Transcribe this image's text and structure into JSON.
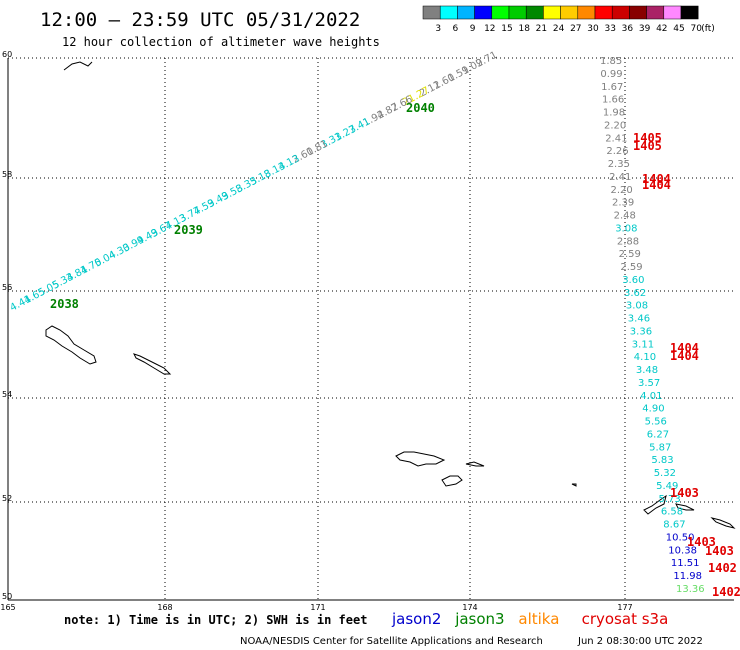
{
  "header": {
    "title": "12:00 — 23:59 UTC 05/31/2022",
    "subtitle": "12 hour collection of altimeter wave heights"
  },
  "legend": {
    "colors": [
      "#808080",
      "#00ffff",
      "#00b4ff",
      "#0000ff",
      "#00ff00",
      "#00cc00",
      "#008800",
      "#ffff00",
      "#ffcc00",
      "#ff8800",
      "#ff0000",
      "#cc0000",
      "#880000",
      "#aa2266",
      "#ff88ff",
      "#000000"
    ],
    "labels": [
      "3",
      "6",
      "9",
      "12",
      "15",
      "18",
      "21",
      "24",
      "27",
      "30",
      "33",
      "36",
      "39",
      "42",
      "45",
      "70",
      "(ft)"
    ]
  },
  "axes": {
    "lat_labels": [
      "60",
      "58",
      "56",
      "54",
      "52",
      "50"
    ],
    "lon_labels": [
      "165",
      "168",
      "171",
      "174",
      "177"
    ]
  },
  "colors": {
    "cyan": "#00c8c8",
    "gray": "#808080",
    "green": "#008000",
    "red": "#e00000",
    "navy": "#0000cc",
    "yellow": "#e0e000",
    "lightgreen": "#66dd66"
  },
  "tracks": {
    "west": [
      [
        "2.71",
        "gray"
      ],
      [
        "1.09",
        "gray"
      ],
      [
        "1.59",
        "gray"
      ],
      [
        "2.60",
        "gray"
      ],
      [
        "2.11",
        "gray"
      ],
      [
        "21.27",
        "yellow"
      ],
      [
        "2.66",
        "gray"
      ],
      [
        "2.87",
        "gray"
      ],
      [
        "1.94",
        "gray"
      ],
      [
        "3.41",
        "cyan"
      ],
      [
        "3.27",
        "cyan"
      ],
      [
        "3.31",
        "cyan"
      ],
      [
        "1.81",
        "gray"
      ],
      [
        "2.60",
        "gray"
      ],
      [
        "3.13",
        "cyan"
      ],
      [
        "3.14",
        "cyan"
      ],
      [
        "3.18",
        "cyan"
      ],
      [
        "3.35",
        "cyan"
      ],
      [
        "3.58",
        "cyan"
      ],
      [
        "3.49",
        "cyan"
      ],
      [
        "4.59",
        "cyan"
      ],
      [
        "3.77",
        "cyan"
      ],
      [
        "4.13",
        "cyan"
      ],
      [
        "3.67",
        "cyan"
      ],
      [
        "4.49",
        "cyan"
      ],
      [
        "3.99",
        "cyan"
      ],
      [
        "4.30",
        "cyan"
      ],
      [
        "5.04",
        "cyan"
      ],
      [
        "4.70",
        "cyan"
      ],
      [
        "4.81",
        "cyan"
      ],
      [
        "5.33",
        "cyan"
      ],
      [
        "5.05",
        "cyan"
      ],
      [
        "4.65",
        "cyan"
      ],
      [
        "4.41",
        "cyan"
      ]
    ],
    "west_times": [
      "2040",
      "2039",
      "2038"
    ],
    "east": [
      [
        "1.85",
        "gray"
      ],
      [
        "0.99",
        "gray"
      ],
      [
        "1.67",
        "gray"
      ],
      [
        "1.66",
        "gray"
      ],
      [
        "1.98",
        "gray"
      ],
      [
        "2.20",
        "gray"
      ],
      [
        "2.41",
        "gray"
      ],
      [
        "2.26",
        "gray"
      ],
      [
        "2.35",
        "gray"
      ],
      [
        "2.41",
        "gray"
      ],
      [
        "2.20",
        "gray"
      ],
      [
        "2.39",
        "gray"
      ],
      [
        "2.48",
        "gray"
      ],
      [
        "3.08",
        "cyan"
      ],
      [
        "2.88",
        "gray"
      ],
      [
        "2.59",
        "gray"
      ],
      [
        "2.59",
        "gray"
      ],
      [
        "3.60",
        "cyan"
      ],
      [
        "3.62",
        "cyan"
      ],
      [
        "3.08",
        "cyan"
      ],
      [
        "3.46",
        "cyan"
      ],
      [
        "3.36",
        "cyan"
      ],
      [
        "3.11",
        "cyan"
      ],
      [
        "4.10",
        "cyan"
      ],
      [
        "3.48",
        "cyan"
      ],
      [
        "3.57",
        "cyan"
      ],
      [
        "4.01",
        "cyan"
      ],
      [
        "4.90",
        "cyan"
      ],
      [
        "5.56",
        "cyan"
      ],
      [
        "6.27",
        "cyan"
      ],
      [
        "5.87",
        "cyan"
      ],
      [
        "5.83",
        "cyan"
      ],
      [
        "5.32",
        "cyan"
      ],
      [
        "5.49",
        "cyan"
      ],
      [
        "5.73",
        "cyan"
      ],
      [
        "6.58",
        "cyan"
      ],
      [
        "8.67",
        "cyan"
      ],
      [
        "10.50",
        "navy"
      ],
      [
        "10.38",
        "navy"
      ],
      [
        "11.51",
        "navy"
      ],
      [
        "11.98",
        "navy"
      ],
      [
        "13.36",
        "lightgreen"
      ]
    ],
    "east_times": [
      "1405",
      "1405",
      "1404",
      "1404",
      "1404",
      "1404",
      "1403",
      "1403",
      "1403",
      "1402",
      "1402"
    ]
  },
  "footer": {
    "note": "note: 1) Time is in UTC; 2) SWH is in feet",
    "satellites": [
      {
        "name": "jason2",
        "color": "#0000cc"
      },
      {
        "name": "jason3",
        "color": "#008000"
      },
      {
        "name": "altika",
        "color": "#ff8800"
      },
      {
        "name": "cryosat s3a",
        "color": "#e00000"
      }
    ],
    "credit": "NOAA/NESDIS Center for Satellite Applications and Research",
    "timestamp": "Jun  2 08:30:00 UTC 2022"
  }
}
